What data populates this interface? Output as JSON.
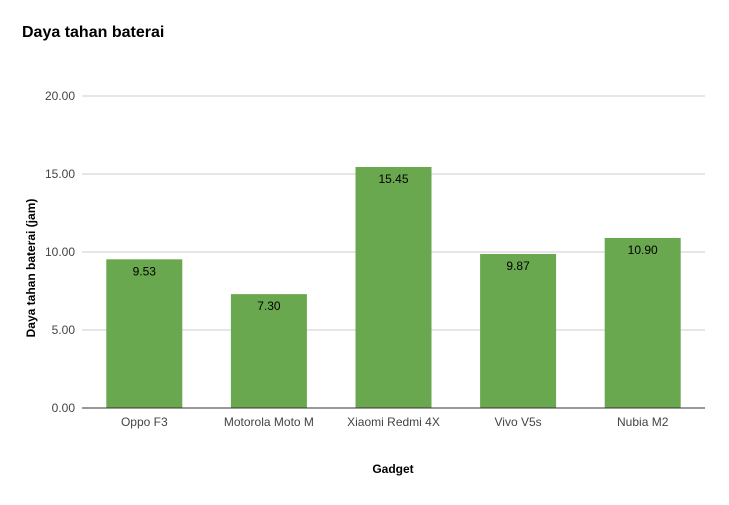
{
  "chart_data": {
    "type": "bar",
    "title": "Daya tahan baterai",
    "xlabel": "Gadget",
    "ylabel": "Daya tahan baterai (jam)",
    "categories": [
      "Oppo F3",
      "Motorola Moto M",
      "Xiaomi Redmi 4X",
      "Vivo V5s",
      "Nubia M2"
    ],
    "values": [
      9.53,
      7.3,
      15.45,
      9.87,
      10.9
    ],
    "value_labels": [
      "9.53",
      "7.30",
      "15.45",
      "9.87",
      "10.90"
    ],
    "yticks": [
      0,
      5,
      10,
      15,
      20
    ],
    "ytick_labels": [
      "0.00",
      "5.00",
      "10.00",
      "15.00",
      "20.00"
    ],
    "ylim": [
      0,
      20
    ],
    "grid": true,
    "legend": "none",
    "bar_color": "#6aa84f"
  }
}
